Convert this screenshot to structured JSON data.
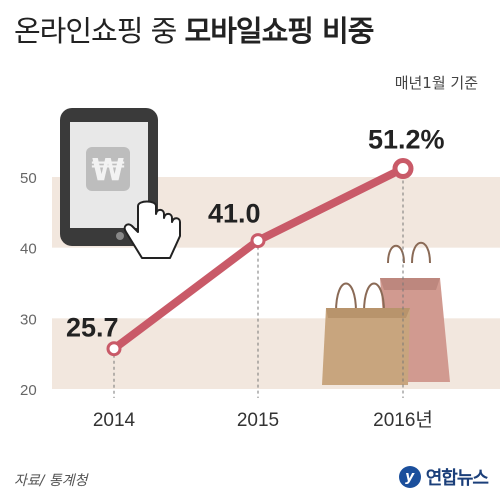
{
  "header": {
    "title_light": "온라인쇼핑 중",
    "title_bold": "모바일쇼핑 비중",
    "subtitle": "매년1월 기준"
  },
  "footer": {
    "source": "자료/ 통계청",
    "brand": "연합뉴스"
  },
  "colors": {
    "line": "#c95a68",
    "band": "#f2e7de",
    "marker_fill": "#ffffff",
    "bag_tan": "#c8a57e",
    "bag_pink": "#d19a90"
  },
  "chart_data": {
    "type": "line",
    "title": "",
    "categories": [
      "2014",
      "2015",
      "2016년"
    ],
    "series": [
      {
        "values": [
          25.7,
          41.0,
          51.2
        ]
      }
    ],
    "data_labels": [
      "25.7",
      "41.0",
      "51.2%"
    ],
    "y_ticks": [
      20,
      30,
      40,
      50
    ],
    "ylim": [
      20,
      52
    ],
    "grid": "alternating bands"
  }
}
